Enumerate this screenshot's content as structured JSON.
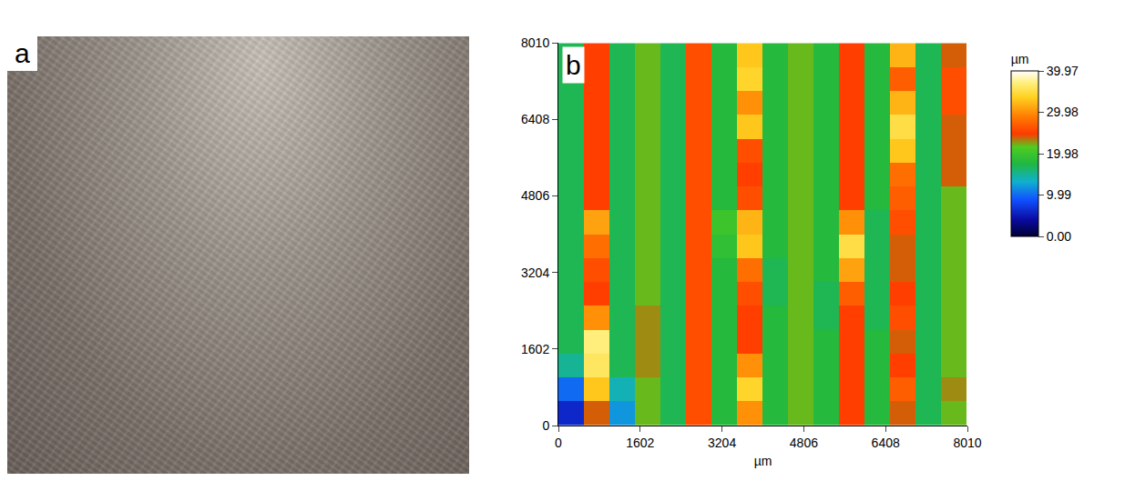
{
  "photo": {
    "panel_label": "a"
  },
  "chart_data": {
    "type": "heatmap",
    "panel_label": "b",
    "x_label": "µm",
    "x": [
      250,
      750,
      1250,
      1750,
      2250,
      2750,
      3250,
      3750,
      4250,
      4750,
      5250,
      5750,
      6250,
      6750,
      7250,
      7750
    ],
    "y": [
      250,
      750,
      1250,
      1750,
      2250,
      2750,
      3250,
      3750,
      4250,
      4750,
      5250,
      5750,
      6250,
      6750,
      7250,
      7750
    ],
    "z": [
      [
        6,
        24,
        12,
        22,
        17,
        26,
        18,
        30,
        18,
        22,
        18,
        25,
        18,
        24,
        17,
        22
      ],
      [
        10,
        33,
        14,
        22,
        17,
        26,
        18,
        34,
        18,
        22,
        18,
        25,
        18,
        27,
        17,
        23
      ],
      [
        15,
        36,
        17,
        23,
        17,
        26,
        18,
        30,
        18,
        22,
        18,
        25,
        18,
        25,
        17,
        22
      ],
      [
        17,
        37,
        17,
        23,
        17,
        26,
        18,
        25,
        18,
        22,
        18,
        25,
        18,
        24,
        17,
        22
      ],
      [
        17,
        30,
        17,
        23,
        17,
        26,
        18,
        25,
        18,
        22,
        17,
        25,
        17,
        26,
        17,
        22
      ],
      [
        17,
        25,
        17,
        22,
        17,
        26,
        18,
        26,
        17,
        22,
        17,
        27,
        17,
        25,
        17,
        22
      ],
      [
        17,
        26,
        17,
        22,
        17,
        26,
        18,
        28,
        17,
        22,
        18,
        31,
        17,
        24,
        17,
        22
      ],
      [
        17,
        28,
        17,
        22,
        17,
        26,
        19,
        33,
        18,
        22,
        18,
        35,
        17,
        24,
        17,
        22
      ],
      [
        17,
        31,
        17,
        22,
        17,
        26,
        20,
        32,
        18,
        22,
        18,
        30,
        17,
        26,
        17,
        22
      ],
      [
        17,
        25,
        17,
        22,
        17,
        26,
        18,
        26,
        18,
        22,
        18,
        25,
        18,
        27,
        17,
        22
      ],
      [
        17,
        25,
        17,
        22,
        17,
        26,
        18,
        25,
        18,
        22,
        18,
        25,
        18,
        28,
        17,
        24
      ],
      [
        17,
        25,
        17,
        22,
        17,
        26,
        18,
        26,
        18,
        22,
        18,
        25,
        18,
        33,
        17,
        24
      ],
      [
        17,
        25,
        17,
        22,
        17,
        26,
        18,
        33,
        18,
        22,
        18,
        25,
        18,
        35,
        17,
        24
      ],
      [
        17,
        25,
        17,
        22,
        17,
        26,
        18,
        30,
        18,
        22,
        18,
        25,
        18,
        32,
        17,
        26
      ],
      [
        17,
        25,
        17,
        22,
        17,
        26,
        18,
        34,
        18,
        22,
        18,
        25,
        18,
        27,
        17,
        26
      ],
      [
        17,
        25,
        17,
        22,
        17,
        26,
        18,
        33,
        18,
        22,
        18,
        25,
        18,
        32,
        17,
        24
      ]
    ],
    "xlim": [
      0,
      8010
    ],
    "ylim": [
      0,
      8010
    ],
    "xticks": [
      0,
      1602,
      3204,
      4806,
      6408,
      8010
    ],
    "yticks": [
      0,
      1602,
      3204,
      4806,
      6408,
      8010
    ],
    "colorbar": {
      "title": "µm",
      "range": [
        0,
        39.97
      ],
      "ticks": [
        {
          "value": 0,
          "label": "0.00"
        },
        9.99,
        19.98,
        29.98,
        39.97
      ]
    }
  }
}
